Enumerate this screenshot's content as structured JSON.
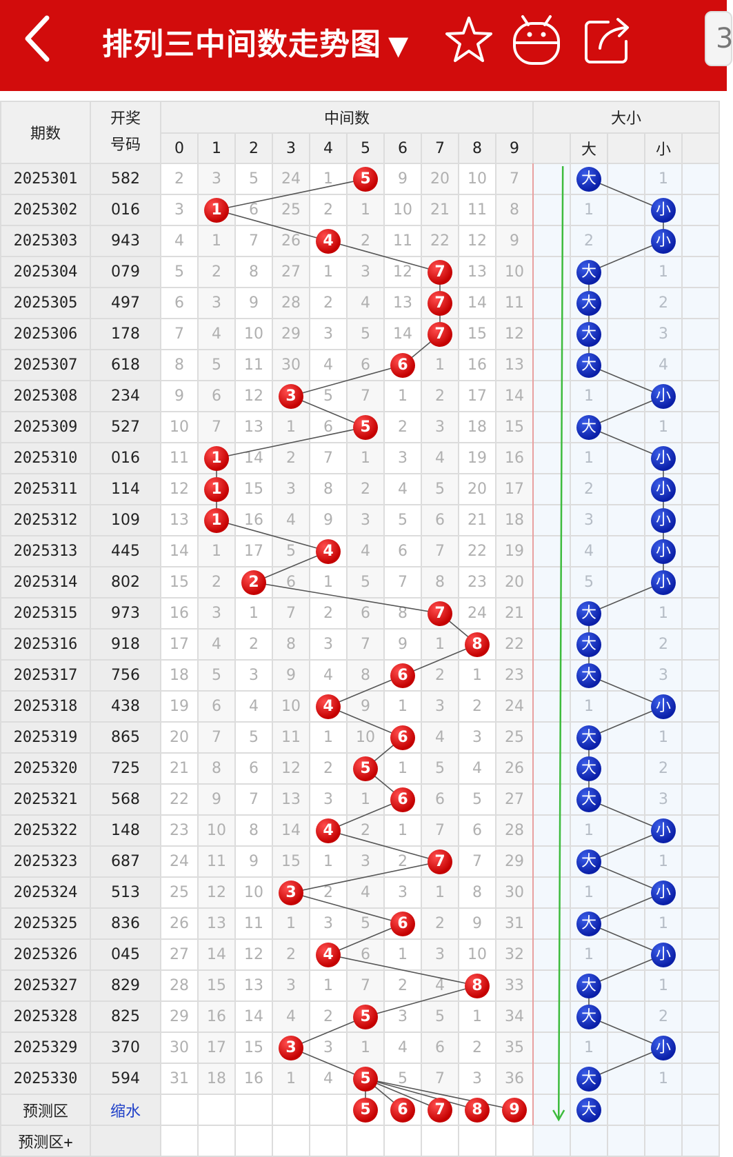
{
  "header": {
    "title": "排列三中间数走势图",
    "dropdown": "▼",
    "side_tab": "3"
  },
  "columns": {
    "period": "期数",
    "draw_line1": "开奖",
    "draw_line2": "号码",
    "middle_group": "中间数",
    "size_group": "大小",
    "digits": [
      "0",
      "1",
      "2",
      "3",
      "4",
      "5",
      "6",
      "7",
      "8",
      "9"
    ],
    "big": "大",
    "small": "小"
  },
  "rows": [
    {
      "period": "2025301",
      "draw": "582",
      "mid": 5,
      "cells": [
        "2",
        "3",
        "5",
        "24",
        "1",
        "5",
        "9",
        "20",
        "10",
        "7"
      ],
      "size": "大",
      "size_other": "1"
    },
    {
      "period": "2025302",
      "draw": "016",
      "mid": 1,
      "cells": [
        "3",
        "1",
        "6",
        "25",
        "2",
        "1",
        "10",
        "21",
        "11",
        "8"
      ],
      "size": "小",
      "size_other": "1"
    },
    {
      "period": "2025303",
      "draw": "943",
      "mid": 4,
      "cells": [
        "4",
        "1",
        "7",
        "26",
        "4",
        "2",
        "11",
        "22",
        "12",
        "9"
      ],
      "size": "小",
      "size_other": "2"
    },
    {
      "period": "2025304",
      "draw": "079",
      "mid": 7,
      "cells": [
        "5",
        "2",
        "8",
        "27",
        "1",
        "3",
        "12",
        "7",
        "13",
        "10"
      ],
      "size": "大",
      "size_other": "1"
    },
    {
      "period": "2025305",
      "draw": "497",
      "mid": 7,
      "cells": [
        "6",
        "3",
        "9",
        "28",
        "2",
        "4",
        "13",
        "7",
        "14",
        "11"
      ],
      "size": "大",
      "size_other": "2"
    },
    {
      "period": "2025306",
      "draw": "178",
      "mid": 7,
      "cells": [
        "7",
        "4",
        "10",
        "29",
        "3",
        "5",
        "14",
        "7",
        "15",
        "12"
      ],
      "size": "大",
      "size_other": "3"
    },
    {
      "period": "2025307",
      "draw": "618",
      "mid": 6,
      "cells": [
        "8",
        "5",
        "11",
        "30",
        "4",
        "6",
        "6",
        "1",
        "16",
        "13"
      ],
      "size": "大",
      "size_other": "4"
    },
    {
      "period": "2025308",
      "draw": "234",
      "mid": 3,
      "cells": [
        "9",
        "6",
        "12",
        "3",
        "5",
        "7",
        "1",
        "2",
        "17",
        "14"
      ],
      "size": "小",
      "size_other": "1"
    },
    {
      "period": "2025309",
      "draw": "527",
      "mid": 5,
      "cells": [
        "10",
        "7",
        "13",
        "1",
        "6",
        "5",
        "2",
        "3",
        "18",
        "15"
      ],
      "size": "大",
      "size_other": "1"
    },
    {
      "period": "2025310",
      "draw": "016",
      "mid": 1,
      "cells": [
        "11",
        "1",
        "14",
        "2",
        "7",
        "1",
        "3",
        "4",
        "19",
        "16"
      ],
      "size": "小",
      "size_other": "1"
    },
    {
      "period": "2025311",
      "draw": "114",
      "mid": 1,
      "cells": [
        "12",
        "1",
        "15",
        "3",
        "8",
        "2",
        "4",
        "5",
        "20",
        "17"
      ],
      "size": "小",
      "size_other": "2"
    },
    {
      "period": "2025312",
      "draw": "109",
      "mid": 1,
      "cells": [
        "13",
        "1",
        "16",
        "4",
        "9",
        "3",
        "5",
        "6",
        "21",
        "18"
      ],
      "size": "小",
      "size_other": "3"
    },
    {
      "period": "2025313",
      "draw": "445",
      "mid": 4,
      "cells": [
        "14",
        "1",
        "17",
        "5",
        "4",
        "4",
        "6",
        "7",
        "22",
        "19"
      ],
      "size": "小",
      "size_other": "4"
    },
    {
      "period": "2025314",
      "draw": "802",
      "mid": 2,
      "cells": [
        "15",
        "2",
        "2",
        "6",
        "1",
        "5",
        "7",
        "8",
        "23",
        "20"
      ],
      "size": "小",
      "size_other": "5"
    },
    {
      "period": "2025315",
      "draw": "973",
      "mid": 7,
      "cells": [
        "16",
        "3",
        "1",
        "7",
        "2",
        "6",
        "8",
        "7",
        "24",
        "21"
      ],
      "size": "大",
      "size_other": "1"
    },
    {
      "period": "2025316",
      "draw": "918",
      "mid": 8,
      "cells": [
        "17",
        "4",
        "2",
        "8",
        "3",
        "7",
        "9",
        "1",
        "8",
        "22"
      ],
      "size": "大",
      "size_other": "2"
    },
    {
      "period": "2025317",
      "draw": "756",
      "mid": 6,
      "cells": [
        "18",
        "5",
        "3",
        "9",
        "4",
        "8",
        "6",
        "2",
        "1",
        "23"
      ],
      "size": "大",
      "size_other": "3"
    },
    {
      "period": "2025318",
      "draw": "438",
      "mid": 4,
      "cells": [
        "19",
        "6",
        "4",
        "10",
        "4",
        "9",
        "1",
        "3",
        "2",
        "24"
      ],
      "size": "小",
      "size_other": "1"
    },
    {
      "period": "2025319",
      "draw": "865",
      "mid": 6,
      "cells": [
        "20",
        "7",
        "5",
        "11",
        "1",
        "10",
        "6",
        "4",
        "3",
        "25"
      ],
      "size": "大",
      "size_other": "1"
    },
    {
      "period": "2025320",
      "draw": "725",
      "mid": 5,
      "cells": [
        "21",
        "8",
        "6",
        "12",
        "2",
        "5",
        "1",
        "5",
        "4",
        "26"
      ],
      "size": "大",
      "size_other": "2"
    },
    {
      "period": "2025321",
      "draw": "568",
      "mid": 6,
      "cells": [
        "22",
        "9",
        "7",
        "13",
        "3",
        "1",
        "6",
        "6",
        "5",
        "27"
      ],
      "size": "大",
      "size_other": "3"
    },
    {
      "period": "2025322",
      "draw": "148",
      "mid": 4,
      "cells": [
        "23",
        "10",
        "8",
        "14",
        "4",
        "2",
        "1",
        "7",
        "6",
        "28"
      ],
      "size": "小",
      "size_other": "1"
    },
    {
      "period": "2025323",
      "draw": "687",
      "mid": 7,
      "cells": [
        "24",
        "11",
        "9",
        "15",
        "1",
        "3",
        "2",
        "7",
        "7",
        "29"
      ],
      "size": "大",
      "size_other": "1"
    },
    {
      "period": "2025324",
      "draw": "513",
      "mid": 3,
      "cells": [
        "25",
        "12",
        "10",
        "3",
        "2",
        "4",
        "3",
        "1",
        "8",
        "30"
      ],
      "size": "小",
      "size_other": "1"
    },
    {
      "period": "2025325",
      "draw": "836",
      "mid": 6,
      "cells": [
        "26",
        "13",
        "11",
        "1",
        "3",
        "5",
        "6",
        "2",
        "9",
        "31"
      ],
      "size": "大",
      "size_other": "1"
    },
    {
      "period": "2025326",
      "draw": "045",
      "mid": 4,
      "cells": [
        "27",
        "14",
        "12",
        "2",
        "4",
        "6",
        "1",
        "3",
        "10",
        "32"
      ],
      "size": "小",
      "size_other": "1"
    },
    {
      "period": "2025327",
      "draw": "829",
      "mid": 8,
      "cells": [
        "28",
        "15",
        "13",
        "3",
        "1",
        "7",
        "2",
        "4",
        "8",
        "33"
      ],
      "size": "大",
      "size_other": "1"
    },
    {
      "period": "2025328",
      "draw": "825",
      "mid": 5,
      "cells": [
        "29",
        "16",
        "14",
        "4",
        "2",
        "5",
        "3",
        "5",
        "1",
        "34"
      ],
      "size": "大",
      "size_other": "2"
    },
    {
      "period": "2025329",
      "draw": "370",
      "mid": 3,
      "cells": [
        "30",
        "17",
        "15",
        "3",
        "3",
        "1",
        "4",
        "6",
        "2",
        "35"
      ],
      "size": "小",
      "size_other": "1"
    },
    {
      "period": "2025330",
      "draw": "594",
      "mid": 5,
      "cells": [
        "31",
        "18",
        "16",
        "1",
        "4",
        "5",
        "5",
        "7",
        "3",
        "36"
      ],
      "size": "大",
      "size_other": "1"
    }
  ],
  "prediction": {
    "label": "预测区",
    "action": "缩水",
    "balls": [
      "5",
      "6",
      "7",
      "8",
      "9"
    ],
    "size": "大"
  },
  "prediction_plus": {
    "label": "预测区+"
  },
  "colors": {
    "header_red": "#d20c0c",
    "ball_red": "#c40000",
    "ball_blue": "#0a1fa8",
    "trend_line": "#555555",
    "arrow_green": "#3dbb3d"
  }
}
